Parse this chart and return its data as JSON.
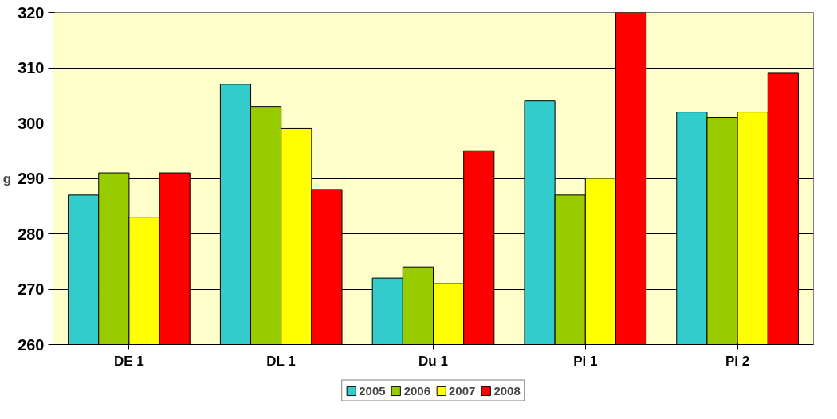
{
  "chart_data": {
    "type": "bar",
    "ylabel": "g",
    "categories": [
      "DE 1",
      "DL 1",
      "Du 1",
      "Pi 1",
      "Pi 2"
    ],
    "series": [
      {
        "name": "2005",
        "color": "#33cccc",
        "values": [
          287,
          307,
          272,
          304,
          302
        ]
      },
      {
        "name": "2006",
        "color": "#99cc00",
        "values": [
          291,
          303,
          274,
          287,
          301
        ]
      },
      {
        "name": "2007",
        "color": "#ffff00",
        "values": [
          283,
          299,
          271,
          290,
          302
        ]
      },
      {
        "name": "2008",
        "color": "#ff0000",
        "values": [
          291,
          288,
          295,
          320,
          309
        ]
      }
    ],
    "ylim": [
      260,
      320
    ],
    "yticks": [
      260,
      270,
      280,
      290,
      300,
      310,
      320
    ],
    "grid": "y",
    "legend": "bottom"
  }
}
